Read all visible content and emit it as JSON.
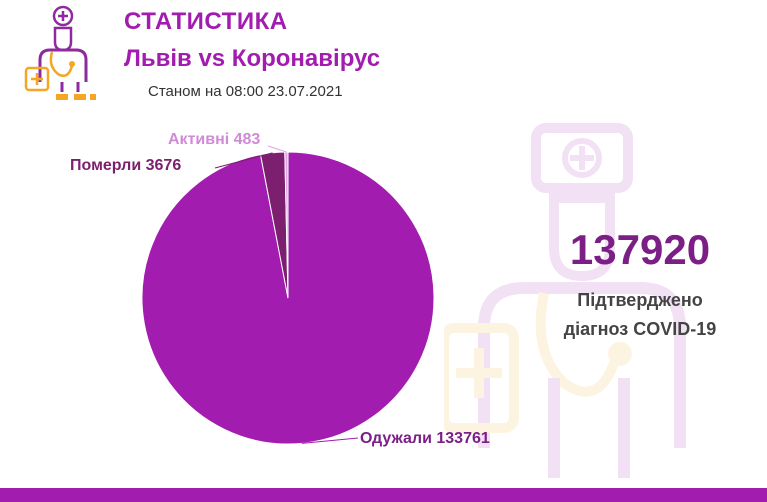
{
  "header": {
    "title": "СТАТИСТИКА",
    "subtitle": "Львів vs Коронавірус",
    "date_line": "Станом на 08:00 23.07.2021"
  },
  "summary": {
    "total": "137920",
    "caption_line1": "Підтверджено",
    "caption_line2": "діагноз COVID-19"
  },
  "colors": {
    "brand": "#a21caf",
    "recovered": "#a21caf",
    "deaths": "#7b1f6e",
    "active": "#e2a3e8",
    "orange_accent": "#f5a623"
  },
  "chart_data": {
    "type": "pie",
    "title": "",
    "slices": [
      {
        "label": "Одужали 133761",
        "category": "Одужали",
        "value": 133761,
        "color": "#a21caf"
      },
      {
        "label": "Померли 3676",
        "category": "Померли",
        "value": 3676,
        "color": "#7b1f6e"
      },
      {
        "label": "Активні 483",
        "category": "Активні",
        "value": 483,
        "color": "#e2a3e8"
      }
    ]
  }
}
